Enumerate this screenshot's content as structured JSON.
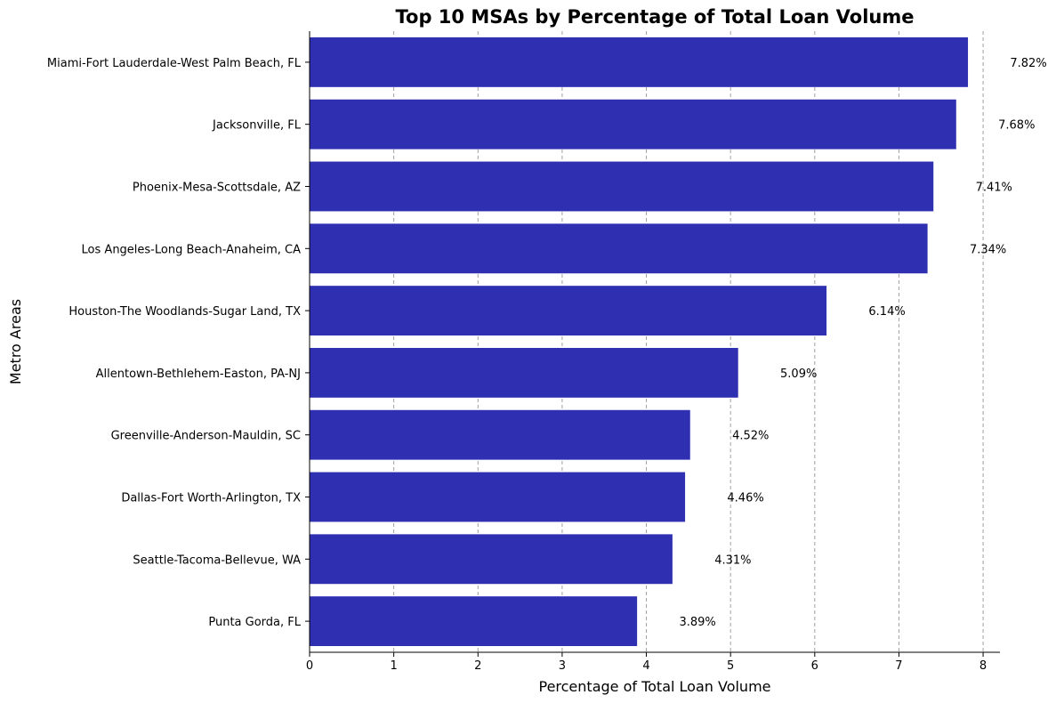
{
  "chart_data": {
    "type": "bar",
    "orientation": "horizontal",
    "title": "Top 10 MSAs by Percentage of Total Loan Volume",
    "xlabel": "Percentage of Total Loan Volume",
    "ylabel": "Metro Areas",
    "xlim": [
      0,
      8.2
    ],
    "x_ticks": [
      "0",
      "1",
      "2",
      "3",
      "4",
      "5",
      "6",
      "7",
      "8"
    ],
    "grid": "x-dashed",
    "bar_color": "#2f2fb2",
    "grid_color": "#a0a0a0",
    "categories": [
      "Miami-Fort Lauderdale-West Palm Beach, FL",
      "Jacksonville, FL",
      "Phoenix-Mesa-Scottsdale, AZ",
      "Los Angeles-Long Beach-Anaheim, CA",
      "Houston-The Woodlands-Sugar Land, TX",
      "Allentown-Bethlehem-Easton, PA-NJ",
      "Greenville-Anderson-Mauldin, SC",
      "Dallas-Fort Worth-Arlington, TX",
      "Seattle-Tacoma-Bellevue, WA",
      "Punta Gorda, FL"
    ],
    "values": [
      7.82,
      7.68,
      7.41,
      7.34,
      6.14,
      5.09,
      4.52,
      4.46,
      4.31,
      3.89
    ],
    "data_labels": [
      "7.82%",
      "7.68%",
      "7.41%",
      "7.34%",
      "6.14%",
      "5.09%",
      "4.52%",
      "4.46%",
      "4.31%",
      "3.89%"
    ]
  }
}
